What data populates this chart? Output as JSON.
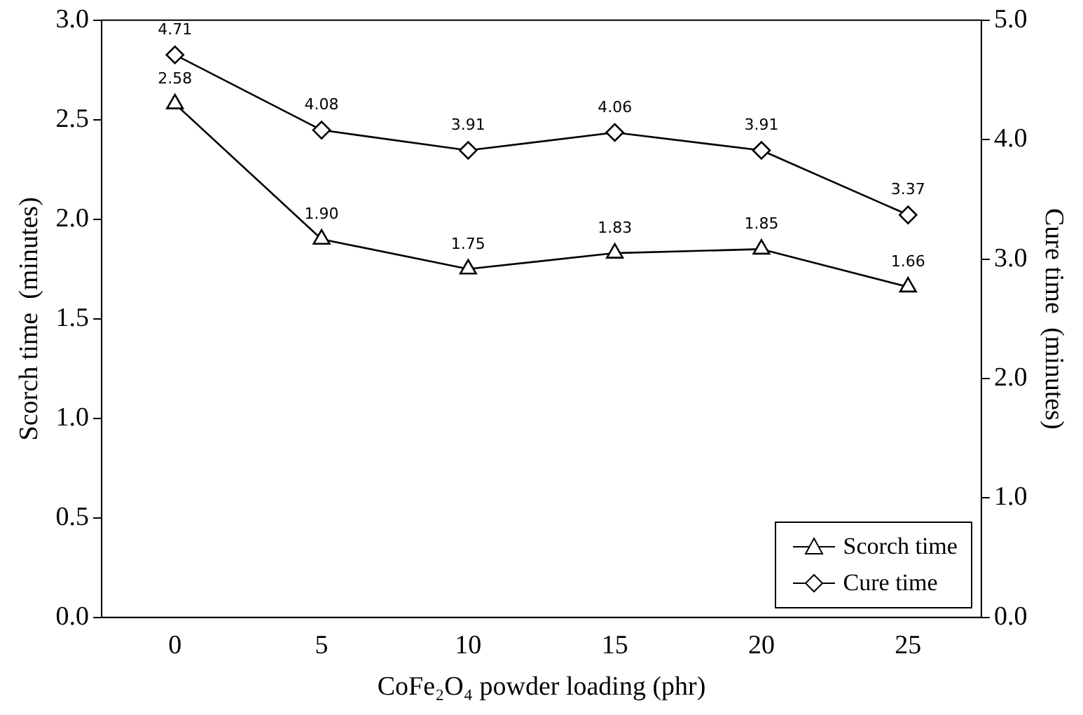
{
  "chart_data": {
    "type": "line",
    "xlabel": "CoFe₂O₄ powder loading (phr)",
    "ylabel": "Scorch time  (minutes)",
    "y2label": "Cure time  (minutes)",
    "categories": [
      "0",
      "5",
      "10",
      "15",
      "20",
      "25"
    ],
    "series": [
      {
        "name": "Scorch time",
        "color": "#000000",
        "marker": "triangle",
        "values": [
          2.58,
          1.9,
          1.75,
          1.83,
          1.85,
          1.66
        ],
        "value_labels": [
          "2.58",
          "1.90",
          "1.75",
          "1.83",
          "1.85",
          "1.66"
        ]
      },
      {
        "name": "Cure time",
        "color": "#000000",
        "marker": "diamond",
        "axis": "y2",
        "values": [
          4.71,
          4.08,
          3.91,
          4.06,
          3.91,
          3.37
        ],
        "value_labels": [
          "4.71",
          "4.08",
          "3.91",
          "4.06",
          "3.91",
          "3.37"
        ]
      }
    ],
    "ylim": [
      0,
      3
    ],
    "yticks": [
      {
        "value": 0,
        "label": "0.0"
      },
      {
        "value": 0.5,
        "label": "0.5"
      },
      {
        "value": 1,
        "label": "1.0"
      },
      {
        "value": 1.5,
        "label": "1.5"
      },
      {
        "value": 2,
        "label": "2.0"
      },
      {
        "value": 2.5,
        "label": "2.5"
      },
      {
        "value": 3,
        "label": "3.0"
      }
    ],
    "y2lim": [
      0,
      5
    ],
    "y2ticks": [
      {
        "value": 0,
        "label": "0.0"
      },
      {
        "value": 1,
        "label": "1.0"
      },
      {
        "value": 2,
        "label": "2.0"
      },
      {
        "value": 3,
        "label": "3.0"
      },
      {
        "value": 4,
        "label": "4.0"
      },
      {
        "value": 5,
        "label": "5.0"
      }
    ],
    "legend": "bottom right",
    "grid": false,
    "line_style": "solid"
  }
}
